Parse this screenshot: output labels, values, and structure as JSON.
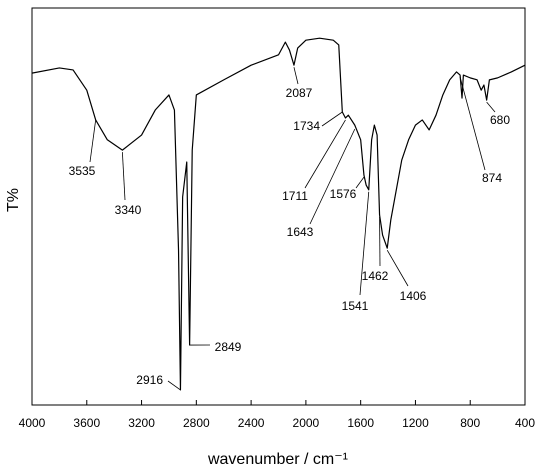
{
  "chart_data": {
    "type": "line",
    "xlabel": "wavenumber / cm⁻¹",
    "ylabel": "T%",
    "xlim": [
      4000,
      400
    ],
    "xticks": [
      4000,
      3600,
      3200,
      2800,
      2400,
      2000,
      1600,
      1200,
      800,
      400
    ],
    "ylim": [
      0,
      100
    ],
    "series": [
      {
        "color": "#000000",
        "x": [
          4000,
          3800,
          3700,
          3600,
          3535,
          3450,
          3340,
          3200,
          3100,
          3000,
          2960,
          2930,
          2916,
          2900,
          2870,
          2849,
          2830,
          2800,
          2600,
          2400,
          2200,
          2150,
          2120,
          2087,
          2060,
          2000,
          1900,
          1800,
          1760,
          1734,
          1711,
          1690,
          1643,
          1600,
          1576,
          1560,
          1541,
          1520,
          1500,
          1480,
          1462,
          1440,
          1406,
          1380,
          1300,
          1250,
          1200,
          1150,
          1100,
          1050,
          1000,
          950,
          900,
          874,
          860,
          850,
          800,
          750,
          720,
          700,
          680,
          660,
          600,
          500,
          400
        ],
        "values": [
          83.6,
          84.9,
          84.4,
          79.3,
          71.8,
          66.8,
          64.2,
          68.0,
          74.3,
          78.1,
          74.3,
          39.0,
          3.8,
          52.4,
          61.2,
          15.1,
          64.2,
          78.1,
          81.9,
          85.6,
          88.2,
          91.4,
          89.4,
          85.6,
          89.9,
          91.9,
          92.4,
          91.9,
          90.7,
          73.8,
          72.3,
          73.0,
          70.5,
          66.8,
          57.9,
          55.4,
          54.2,
          66.8,
          70.5,
          68.0,
          47.9,
          42.8,
          39.5,
          46.6,
          61.7,
          66.8,
          70.5,
          71.8,
          69.3,
          73.0,
          78.1,
          81.9,
          83.9,
          83.1,
          77.3,
          83.1,
          82.4,
          81.9,
          79.3,
          80.6,
          76.8,
          81.9,
          82.4,
          83.9,
          85.6
        ]
      }
    ],
    "annotations": [
      3535,
      3340,
      2916,
      2849,
      2087,
      1734,
      1711,
      1643,
      1576,
      1541,
      1462,
      1406,
      874,
      680
    ]
  }
}
